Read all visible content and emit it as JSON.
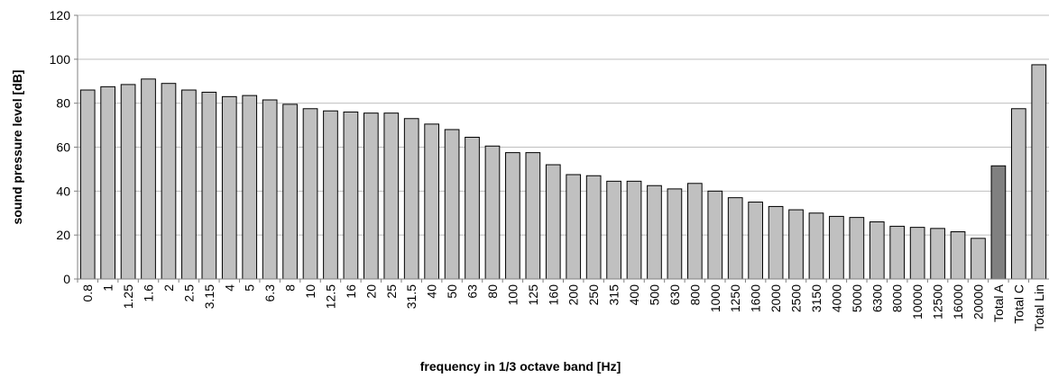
{
  "chart_data": {
    "type": "bar",
    "title": "",
    "xlabel": "frequency in 1/3 octave band [Hz]",
    "ylabel": "sound pressure level [dB]",
    "ylim": [
      0,
      120
    ],
    "yticks": [
      0,
      20,
      40,
      60,
      80,
      100,
      120
    ],
    "grid": true,
    "legend": "none",
    "categories": [
      "0.8",
      "1",
      "1.25",
      "1.6",
      "2",
      "2.5",
      "3.15",
      "4",
      "5",
      "6.3",
      "8",
      "10",
      "12.5",
      "16",
      "20",
      "25",
      "31.5",
      "40",
      "50",
      "63",
      "80",
      "100",
      "125",
      "160",
      "200",
      "250",
      "315",
      "400",
      "500",
      "630",
      "800",
      "1000",
      "1250",
      "1600",
      "2000",
      "2500",
      "3150",
      "4000",
      "5000",
      "6300",
      "8000",
      "10000",
      "12500",
      "16000",
      "20000",
      "Total A",
      "Total C",
      "Total Lin"
    ],
    "values": [
      86,
      87.5,
      88.5,
      91,
      89,
      86,
      85,
      83,
      83.5,
      81.5,
      79.5,
      77.5,
      76.5,
      76,
      75.5,
      75.5,
      73,
      70.5,
      68,
      64.5,
      60.5,
      57.5,
      57.5,
      52,
      47.5,
      47,
      44.5,
      44.5,
      42.5,
      41,
      43.5,
      40,
      37,
      35,
      33,
      31.5,
      30,
      28.5,
      28,
      26,
      24,
      23.5,
      23,
      21.5,
      18.5,
      51.5,
      77.5,
      97.5
    ],
    "colors": {
      "bar": "#c0c0c0",
      "total_a_bar": "#808080",
      "bar_stroke": "#000000",
      "grid": "#bfbfbf",
      "axis": "#808080"
    }
  }
}
